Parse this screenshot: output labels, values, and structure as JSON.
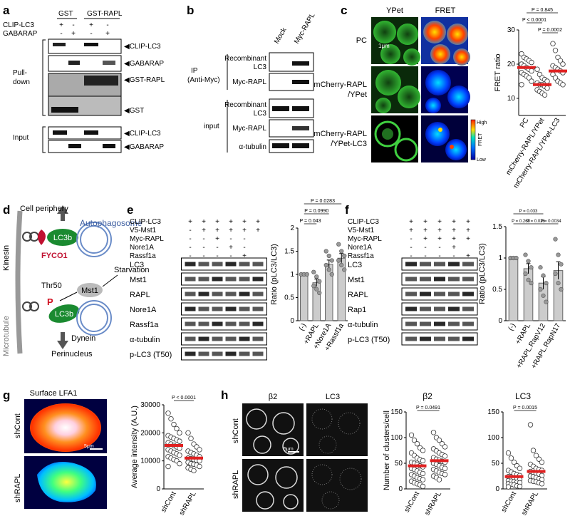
{
  "panels": {
    "a": {
      "letter": "a",
      "headers": [
        "GST",
        "GST-RAPL"
      ],
      "treatment_rows": [
        {
          "label": "CLIP-LC3",
          "signs": [
            "+",
            "-",
            "+",
            "-"
          ]
        },
        {
          "label": "GABARAP",
          "signs": [
            "-",
            "+",
            "-",
            "+"
          ]
        }
      ],
      "group_labels": [
        "Pull-",
        "down",
        "Input"
      ],
      "bands": [
        "CLIP-LC3",
        "GABARAP",
        "GST-RAPL",
        "GST",
        "CLIP-LC3",
        "GABARAP"
      ]
    },
    "b": {
      "letter": "b",
      "lanes": [
        "Mock",
        "Myc-RAPL"
      ],
      "groups": [
        [
          "IP",
          "(Anti-Myc)"
        ],
        [
          "input"
        ]
      ],
      "ip_bands": [
        [
          "Recombinant",
          "LC3"
        ],
        [
          "Myc-RAPL"
        ]
      ],
      "input_bands": [
        [
          "Recombinant",
          "LC3"
        ],
        [
          "Myc-RAPL"
        ],
        [
          "α-tubulin"
        ]
      ]
    },
    "c": {
      "letter": "c",
      "col_headers": [
        "YPet",
        "FRET"
      ],
      "rows": [
        [
          "PC"
        ],
        [
          "mCherry-RAPL",
          "/YPet"
        ],
        [
          "mCherry-RAPL",
          "/YPet-LC3"
        ]
      ],
      "scalebar": "1μm",
      "colorbar": [
        "High",
        "FRET",
        "Low"
      ],
      "chart_data": {
        "type": "scatter",
        "ylabel": "FRET ratio",
        "ylim": [
          5,
          30
        ],
        "yticks": [
          10,
          20,
          30
        ],
        "categories": [
          "PC",
          "mCherry-RAPL/YPet",
          "mCherry-RAPL/YPet-LC3"
        ],
        "means": [
          19,
          14,
          18
        ],
        "points": [
          [
            23,
            22,
            21.5,
            21,
            20.5,
            20,
            19.5,
            19,
            18.5,
            18,
            17.5,
            17,
            16.5,
            16,
            15,
            14
          ],
          [
            18.5,
            17,
            16,
            15.5,
            15,
            14.5,
            14,
            14,
            13.5,
            13,
            12.5,
            12,
            11.5,
            11
          ],
          [
            26,
            24,
            22,
            21,
            20,
            19.5,
            19,
            18.5,
            18,
            17.5,
            17,
            16,
            15,
            14.5,
            14
          ]
        ],
        "pvalues": [
          {
            "label": "P = 0.845",
            "pair": [
              0,
              2
            ]
          },
          {
            "label": "P < 0.0001",
            "pair": [
              0,
              1
            ]
          },
          {
            "label": "P = 0.0002",
            "pair": [
              1,
              2
            ]
          }
        ]
      }
    },
    "d": {
      "letter": "d",
      "labels": {
        "cell_periphery": "Cell periphery",
        "kinesin": "Kinesin",
        "autophagosome": "Autophagosome",
        "lc3b_top": "LC3b",
        "fyco1": "FYCO1",
        "starvation": "Starvation",
        "thr50": "Thr50",
        "p": "P",
        "mst1": "Mst1",
        "microtubule": "Microtubule",
        "lc3b_bottom": "LC3b",
        "dynein": "Dynein",
        "perinucleus": "Perinucleus"
      }
    },
    "e": {
      "letter": "e",
      "treatment_rows": [
        {
          "label": "CLIP-LC3",
          "signs": [
            "+",
            "+",
            "+",
            "+",
            "+",
            "+"
          ]
        },
        {
          "label": "V5-Mst1",
          "signs": [
            "-",
            "+",
            "+",
            "+",
            "+",
            "+"
          ]
        },
        {
          "label": "Myc-RAPL",
          "signs": [
            "-",
            "-",
            "+",
            "-",
            "-",
            ""
          ]
        },
        {
          "label": "Nore1A",
          "signs": [
            "-",
            "-",
            "-",
            "+",
            "-",
            ""
          ]
        },
        {
          "label": "Rassf1a",
          "signs": [
            "-",
            "-",
            "-",
            "-",
            "+",
            ""
          ]
        }
      ],
      "bands": [
        "LC3",
        "Mst1",
        "RAPL",
        "Nore1A",
        "Rassf1a",
        "α-tubulin",
        "p-LC3 (T50)"
      ],
      "chart_data": {
        "type": "bar",
        "ylabel": "Ratio (pLC3/LC3)",
        "ylim": [
          0,
          2.0
        ],
        "yticks": [
          0,
          0.5,
          1.0,
          1.5,
          2.0
        ],
        "categories": [
          "(-)",
          "+RAPL",
          "+Nore1A",
          "+Rassf1a"
        ],
        "values": [
          1.0,
          0.82,
          1.22,
          1.35
        ],
        "errors": [
          0.02,
          0.08,
          0.09,
          0.1
        ],
        "points": [
          [
            1.0,
            1.0,
            1.0
          ],
          [
            1.05,
            0.95,
            0.85,
            0.75,
            0.68,
            0.6
          ],
          [
            1.5,
            1.4,
            1.3,
            1.2,
            1.1,
            1.0
          ],
          [
            1.65,
            1.5,
            1.4,
            1.3,
            1.2,
            1.1
          ]
        ],
        "pvalues": [
          {
            "label": "P = 0.0283",
            "pair": [
              0,
              3
            ]
          },
          {
            "label": "P = 0.0990",
            "pair": [
              0,
              2
            ]
          },
          {
            "label": "P = 0.043",
            "pair": [
              0,
              1
            ]
          }
        ]
      }
    },
    "f": {
      "letter": "f",
      "treatment_rows": [
        {
          "label": "CLIP-LC3",
          "signs": [
            "+",
            "+",
            "+",
            "+",
            "+"
          ]
        },
        {
          "label": "V5-Mst1",
          "signs": [
            "+",
            "+",
            "+",
            "+",
            "+"
          ]
        },
        {
          "label": "Myc-RAPL",
          "signs": [
            "-",
            "+",
            "+",
            "+",
            "+"
          ]
        },
        {
          "label": "Nore1A",
          "signs": [
            "-",
            "-",
            "-",
            "+",
            ""
          ]
        },
        {
          "label": "Rassf1a",
          "signs": [
            "-",
            "-",
            "-",
            "-",
            "+"
          ]
        }
      ],
      "bands": [
        "LC3",
        "Mst1",
        "RAPL",
        "Rap1",
        "α-tubulin",
        "p-LC3 (T50)"
      ],
      "chart_data": {
        "type": "bar",
        "ylabel": "Ratio (pLC3/LC3)",
        "ylim": [
          0,
          1.5
        ],
        "yticks": [
          0,
          0.5,
          1.0,
          1.5
        ],
        "categories": [
          "(-)",
          "+RAPL",
          "+RAPL.RapV12",
          "+RAPL.RapN17"
        ],
        "values": [
          1.0,
          0.83,
          0.6,
          0.8
        ],
        "errors": [
          0.02,
          0.08,
          0.1,
          0.14
        ],
        "points": [
          [
            1.0,
            1.0,
            1.0
          ],
          [
            1.05,
            0.95,
            0.85,
            0.75,
            0.65,
            0.6
          ],
          [
            0.85,
            0.72,
            0.6,
            0.5,
            0.4,
            0.3
          ],
          [
            1.3,
            1.05,
            0.9,
            0.75,
            0.6,
            0.5
          ]
        ],
        "pvalues": [
          {
            "label": "P = 0.033",
            "pair": [
              0,
              2
            ]
          },
          {
            "label": "P = 0.268",
            "pair": [
              0,
              1
            ]
          },
          {
            "label": "P = 0.026",
            "pair": [
              1,
              2
            ]
          },
          {
            "label": "P = 0.0034",
            "pair": [
              2,
              3
            ]
          }
        ]
      }
    },
    "g": {
      "letter": "g",
      "image_title": "Surface LFA1",
      "rows": [
        "shCont",
        "shRAPL"
      ],
      "scalebar": "5μm",
      "chart_data": {
        "type": "scatter",
        "ylabel": "Average intensity (A.U.)",
        "ylim": [
          0,
          30000
        ],
        "yticks": [
          0,
          10000,
          20000,
          30000
        ],
        "categories": [
          "shCont",
          "shRAPL"
        ],
        "means": [
          15500,
          11000
        ],
        "points": [
          [
            27000,
            25000,
            23000,
            21500,
            20000,
            19000,
            18500,
            18000,
            17500,
            17000,
            16500,
            16000,
            15500,
            15000,
            14500,
            14000,
            13500,
            13000,
            12500,
            12000,
            11500,
            11000,
            10500,
            10000,
            9000,
            8000
          ],
          [
            20000,
            18000,
            16000,
            15000,
            14000,
            13500,
            13000,
            12500,
            12000,
            11500,
            11000,
            10800,
            10500,
            10200,
            10000,
            9500,
            9000,
            8800,
            8500,
            8000,
            7500,
            7000,
            6500
          ]
        ],
        "pvalues": [
          {
            "label": "P < 0.0001",
            "pair": [
              0,
              1
            ]
          }
        ]
      }
    },
    "h": {
      "letter": "h",
      "col_headers": [
        "β2",
        "LC3"
      ],
      "rows": [
        "shCont",
        "shRAPL"
      ],
      "scalebar": "5μm",
      "charts": [
        {
          "title": "β2",
          "chart_data": {
            "type": "scatter",
            "ylabel": "Number of clusters/cell",
            "ylim": [
              0,
              150
            ],
            "yticks": [
              0,
              50,
              100,
              150
            ],
            "categories": [
              "shCont",
              "shRAPL"
            ],
            "means": [
              45,
              55
            ],
            "points": [
              [
                105,
                95,
                88,
                80,
                75,
                70,
                65,
                60,
                57,
                55,
                52,
                50,
                48,
                45,
                43,
                40,
                38,
                35,
                32,
                30,
                28,
                25,
                22,
                20,
                18,
                15,
                12,
                10,
                8,
                5
              ],
              [
                110,
                100,
                95,
                88,
                82,
                78,
                74,
                70,
                67,
                64,
                61,
                58,
                56,
                54,
                52,
                50,
                48,
                45,
                42,
                40,
                38,
                35,
                32,
                30,
                28,
                25,
                22,
                18
              ]
            ],
            "pvalues": [
              {
                "label": "P = 0.0491",
                "pair": [
                  0,
                  1
                ]
              }
            ]
          }
        },
        {
          "title": "LC3",
          "chart_data": {
            "type": "scatter",
            "ylabel": "",
            "ylim": [
              0,
              150
            ],
            "yticks": [
              0,
              50,
              100,
              150
            ],
            "categories": [
              "shCont",
              "shRAPL"
            ],
            "means": [
              24,
              34
            ],
            "points": [
              [
                70,
                60,
                52,
                45,
                40,
                36,
                33,
                30,
                28,
                26,
                24,
                22,
                20,
                19,
                18,
                16,
                15,
                14,
                13,
                12,
                10,
                9,
                8,
                6,
                5,
                4
              ],
              [
                125,
                75,
                65,
                58,
                52,
                48,
                44,
                40,
                38,
                36,
                34,
                32,
                30,
                28,
                26,
                25,
                24,
                22,
                20,
                18,
                16,
                15,
                14,
                12,
                10
              ]
            ],
            "pvalues": [
              {
                "label": "P = 0.0015",
                "pair": [
                  0,
                  1
                ]
              }
            ]
          }
        }
      ]
    }
  }
}
